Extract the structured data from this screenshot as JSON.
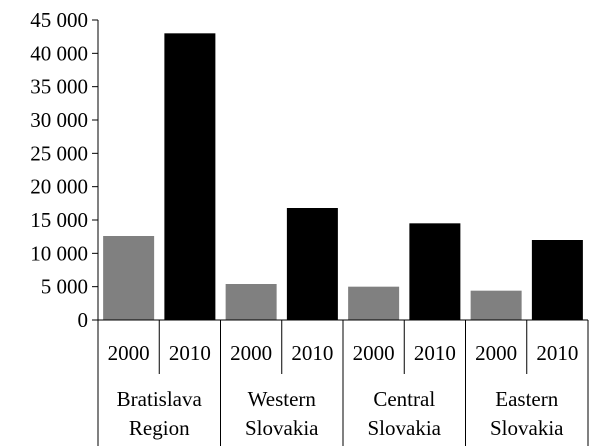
{
  "chart_data": {
    "type": "bar",
    "title": "",
    "xlabel": "",
    "ylabel": "",
    "ylim": [
      0,
      45000
    ],
    "yticks": [
      0,
      5000,
      10000,
      15000,
      20000,
      25000,
      30000,
      35000,
      40000,
      45000
    ],
    "ytick_labels": [
      "0",
      "5 000",
      "10 000",
      "15 000",
      "20 000",
      "25 000",
      "30 000",
      "35 000",
      "40 000",
      "45 000"
    ],
    "grid": false,
    "legend": "none",
    "groups": [
      {
        "label_lines": [
          "Bratislava",
          "Region"
        ],
        "bars": [
          {
            "year": "2000",
            "value": 12600
          },
          {
            "year": "2010",
            "value": 43000
          }
        ]
      },
      {
        "label_lines": [
          "Western",
          "Slovakia"
        ],
        "bars": [
          {
            "year": "2000",
            "value": 5400
          },
          {
            "year": "2010",
            "value": 16800
          }
        ]
      },
      {
        "label_lines": [
          "Central",
          "Slovakia"
        ],
        "bars": [
          {
            "year": "2000",
            "value": 5000
          },
          {
            "year": "2010",
            "value": 14500
          }
        ]
      },
      {
        "label_lines": [
          "Eastern",
          "Slovakia"
        ],
        "bars": [
          {
            "year": "2000",
            "value": 4400
          },
          {
            "year": "2010",
            "value": 12000
          }
        ]
      }
    ],
    "series_colors": {
      "2000": "#808080",
      "2010": "#000000"
    }
  }
}
